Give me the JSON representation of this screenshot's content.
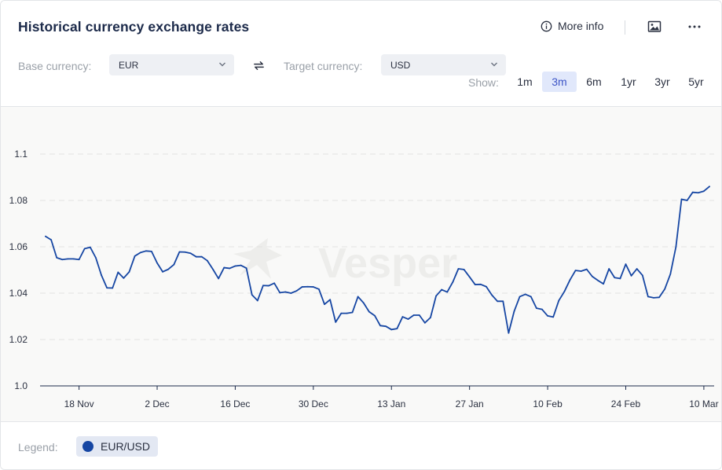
{
  "header": {
    "title": "Historical currency exchange rates",
    "more_info": "More info",
    "base_label": "Base currency:",
    "base_value": "EUR",
    "target_label": "Target currency:",
    "target_value": "USD",
    "show_label": "Show:",
    "ranges": [
      {
        "label": "1m",
        "active": false
      },
      {
        "label": "3m",
        "active": true
      },
      {
        "label": "6m",
        "active": false
      },
      {
        "label": "1yr",
        "active": false
      },
      {
        "label": "3yr",
        "active": false
      },
      {
        "label": "5yr",
        "active": false
      }
    ]
  },
  "watermark": "Vesper",
  "footer": {
    "legend_label": "Legend:",
    "legend_item": "EUR/USD"
  },
  "colors": {
    "line": "#1646a3",
    "grid": "#e2e2e2",
    "accent": "#3d55c6",
    "active_bg": "#e1e8fb"
  },
  "chart_data": {
    "type": "line",
    "title": "Historical currency exchange rates",
    "xlabel": "",
    "ylabel": "",
    "ylim": [
      1.0,
      1.1
    ],
    "yticks": [
      1.0,
      1.02,
      1.04,
      1.06,
      1.08,
      1.1
    ],
    "ytick_labels": [
      "1.0",
      "1.02",
      "1.04",
      "1.06",
      "1.08",
      "1.1"
    ],
    "xticks": [
      {
        "label": "18 Nov",
        "index": 6
      },
      {
        "label": "2 Dec",
        "index": 20
      },
      {
        "label": "16 Dec",
        "index": 34
      },
      {
        "label": "30 Dec",
        "index": 48
      },
      {
        "label": "13 Jan",
        "index": 62
      },
      {
        "label": "27 Jan",
        "index": 76
      },
      {
        "label": "10 Feb",
        "index": 90
      },
      {
        "label": "24 Feb",
        "index": 104
      },
      {
        "label": "10 Mar",
        "index": 118
      }
    ],
    "grid": true,
    "series": [
      {
        "name": "EUR/USD",
        "color": "#1646a3",
        "values": [
          1.0645,
          1.063,
          1.0553,
          1.0545,
          1.0548,
          1.0548,
          1.0545,
          1.0592,
          1.0598,
          1.0553,
          1.0478,
          1.0423,
          1.0422,
          1.049,
          1.0465,
          1.0492,
          1.056,
          1.0575,
          1.0582,
          1.058,
          1.053,
          1.0492,
          1.0503,
          1.0523,
          1.0578,
          1.0577,
          1.0572,
          1.0557,
          1.0557,
          1.054,
          1.0503,
          1.0463,
          1.051,
          1.0507,
          1.0517,
          1.052,
          1.0508,
          1.0393,
          1.0368,
          1.0433,
          1.0432,
          1.0443,
          1.0402,
          1.0405,
          1.04,
          1.041,
          1.0427,
          1.0428,
          1.0427,
          1.0417,
          1.0352,
          1.0372,
          1.0275,
          1.0313,
          1.0313,
          1.0317,
          1.0385,
          1.0358,
          1.032,
          1.0303,
          1.026,
          1.0257,
          1.0243,
          1.0247,
          1.0298,
          1.0288,
          1.0305,
          1.0305,
          1.0272,
          1.0295,
          1.0388,
          1.0415,
          1.0405,
          1.0448,
          1.0505,
          1.0502,
          1.047,
          1.0437,
          1.0438,
          1.0428,
          1.0392,
          1.0365,
          1.0365,
          1.0228,
          1.0322,
          1.0385,
          1.0395,
          1.0385,
          1.0335,
          1.033,
          1.0302,
          1.0297,
          1.0368,
          1.0407,
          1.0457,
          1.0498,
          1.0495,
          1.0503,
          1.0472,
          1.0455,
          1.044,
          1.0505,
          1.0467,
          1.0463,
          1.0525,
          1.0475,
          1.0505,
          1.0477,
          1.0385,
          1.038,
          1.0382,
          1.0418,
          1.0482,
          1.06,
          1.0805,
          1.08,
          1.0835,
          1.0833,
          1.084,
          1.086
        ]
      }
    ],
    "legend": "bottom-left"
  }
}
